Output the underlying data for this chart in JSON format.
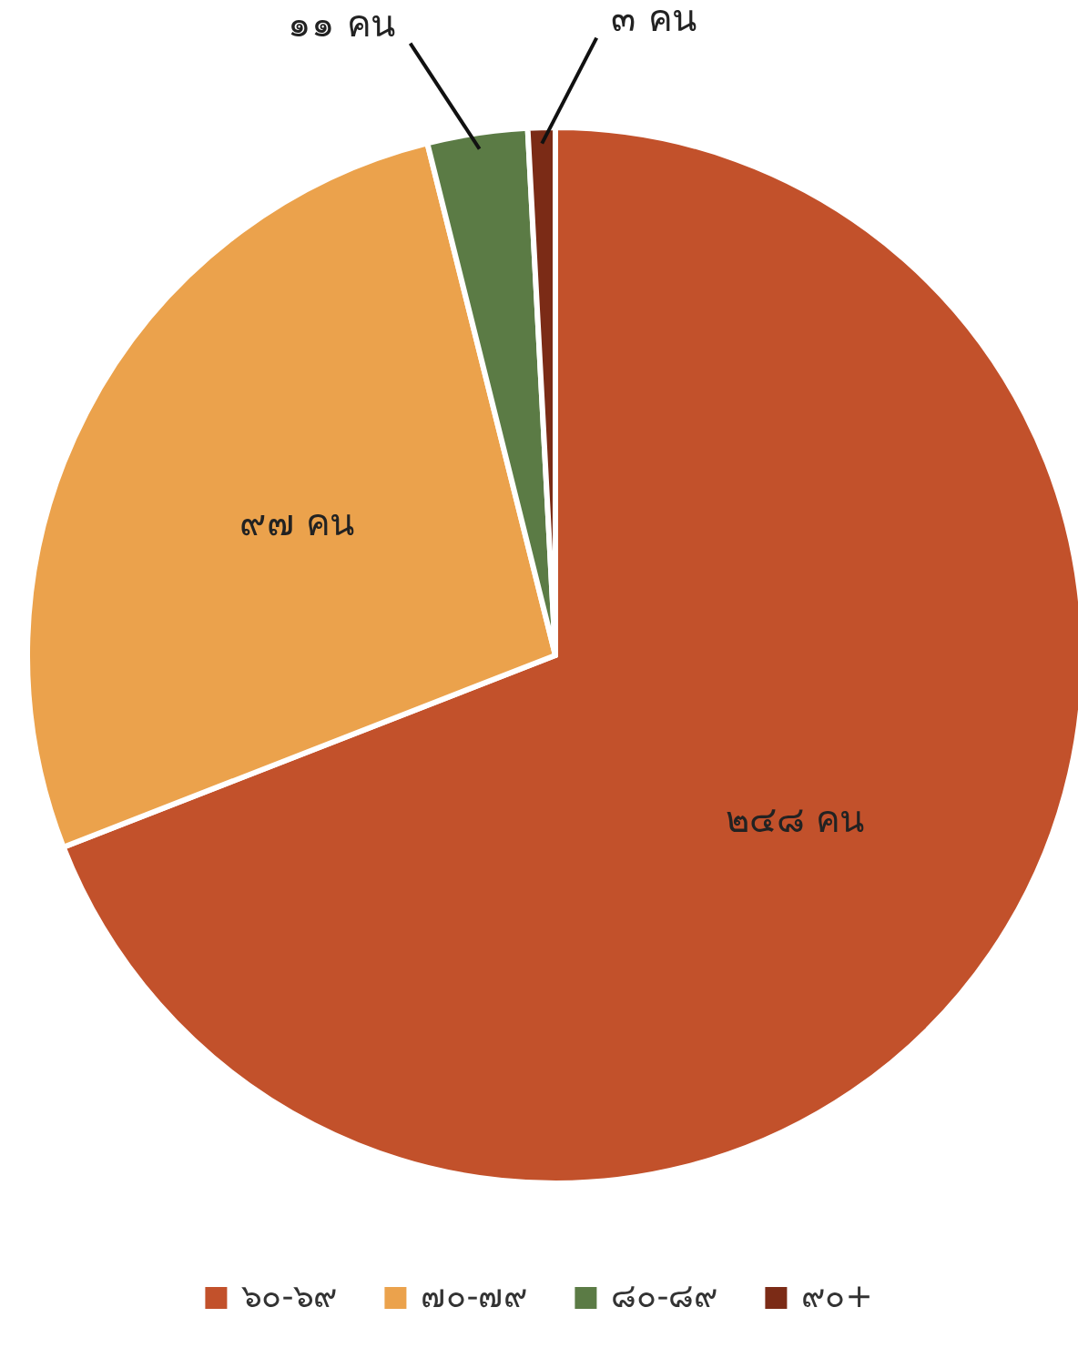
{
  "chart_data": {
    "type": "pie",
    "categories": [
      "๖๐-๖๙",
      "๗๐-๗๙",
      "๘๐-๘๙",
      "๙๐+"
    ],
    "values": [
      248,
      97,
      11,
      3
    ],
    "colors": [
      "#c2512b",
      "#eba24c",
      "#5b7b45",
      "#7b2b16"
    ],
    "value_labels": [
      "๒๔๘ คน",
      "๙๗ คน",
      "๑๑ คน",
      "๓ คน"
    ],
    "legend": "bottom"
  }
}
